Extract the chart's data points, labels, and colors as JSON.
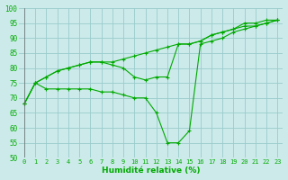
{
  "xlabel": "Humidité relative (%)",
  "xlim": [
    -0.5,
    23.5
  ],
  "ylim": [
    50,
    100
  ],
  "xticks": [
    0,
    1,
    2,
    3,
    4,
    5,
    6,
    7,
    8,
    9,
    10,
    11,
    12,
    13,
    14,
    15,
    16,
    17,
    18,
    19,
    20,
    21,
    22,
    23
  ],
  "yticks": [
    50,
    55,
    60,
    65,
    70,
    75,
    80,
    85,
    90,
    95,
    100
  ],
  "bg_color": "#cceaea",
  "grid_color": "#99cccc",
  "line_color": "#00aa00",
  "line1": [
    68,
    75,
    77,
    79,
    80,
    81,
    82,
    82,
    82,
    83,
    84,
    85,
    86,
    87,
    88,
    88,
    89,
    91,
    92,
    93,
    95,
    95,
    96,
    96
  ],
  "line2": [
    68,
    75,
    77,
    79,
    80,
    81,
    82,
    82,
    81,
    80,
    77,
    76,
    77,
    77,
    88,
    88,
    89,
    91,
    92,
    93,
    94,
    94,
    95,
    96
  ],
  "line3": [
    68,
    75,
    73,
    73,
    73,
    73,
    73,
    72,
    72,
    71,
    70,
    70,
    65,
    55,
    55,
    59,
    88,
    89,
    90,
    92,
    93,
    94,
    95,
    96
  ]
}
